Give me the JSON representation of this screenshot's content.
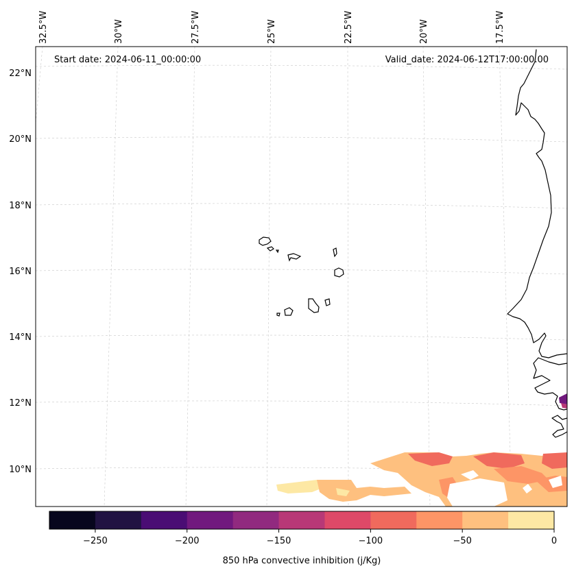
{
  "map": {
    "start_date": "Start date: 2024-06-11_00:00:00",
    "valid_date": "Valid_date: 2024-06-12T17:00:00.00",
    "longitude_labels": [
      "32.5°W",
      "30°W",
      "27.5°W",
      "25°W",
      "22.5°W",
      "20°W",
      "17.5°W"
    ],
    "latitude_labels": [
      "22°N",
      "20°N",
      "18°N",
      "16°N",
      "14°N",
      "12°N",
      "10°N"
    ],
    "colorbar": {
      "label": "850 hPa convective inhibition (j/Kg)",
      "tick_labels": [
        "−250",
        "−200",
        "−150",
        "−100",
        "−50",
        "0"
      ],
      "tick_values": [
        -250,
        -200,
        -150,
        -100,
        -50,
        0
      ],
      "levels": [
        -275,
        -250,
        -225,
        -200,
        -175,
        -150,
        -125,
        -100,
        -75,
        -50,
        -25,
        0
      ],
      "colors": [
        "#07061d",
        "#211342",
        "#4a0d74",
        "#71197e",
        "#912a7f",
        "#b83877",
        "#de4968",
        "#f06a5d",
        "#fd9566",
        "#fec07f",
        "#fde8a4"
      ]
    }
  }
}
